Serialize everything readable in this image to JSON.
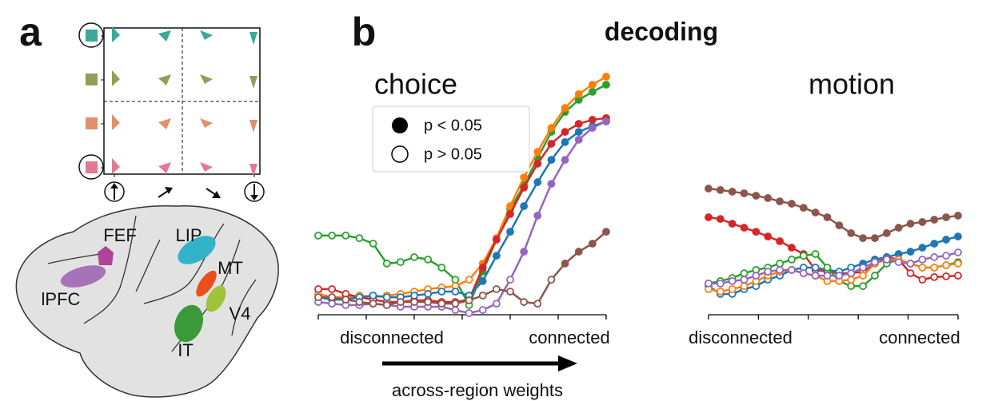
{
  "panel_a": {
    "label": "a",
    "regions": [
      "FEF",
      "LIP",
      "lPFC",
      "MT",
      "V4",
      "IT"
    ]
  },
  "panel_b": {
    "label": "b",
    "title": "decoding",
    "legend": {
      "filled": "p < 0.05",
      "open": "p > 0.05"
    },
    "xlabel": "across-region weights"
  },
  "chart_data": [
    {
      "type": "line",
      "title": "choice",
      "x_left_label": "disconnected",
      "x_right_label": "connected",
      "x": [
        0,
        1,
        2,
        3,
        4,
        5,
        6,
        7,
        8,
        9,
        10,
        11,
        12,
        13,
        14,
        15,
        16,
        17,
        18,
        19,
        20,
        21
      ],
      "xlim": [
        0,
        21
      ],
      "xticks": [
        0,
        3.5,
        7,
        10.5,
        14,
        17.5,
        21
      ],
      "ylim": [
        0,
        1
      ],
      "series": [
        {
          "color": "#2ca02c",
          "values": [
            0.327,
            0.327,
            0.327,
            0.316,
            0.293,
            0.209,
            0.215,
            0.236,
            0.226,
            0.192,
            0.141,
            0.034,
            0.175,
            0.31,
            0.438,
            0.539,
            0.653,
            0.764,
            0.848,
            0.899,
            0.933,
            0.963
          ],
          "significant": [
            false,
            false,
            false,
            false,
            false,
            false,
            false,
            false,
            false,
            false,
            false,
            false,
            true,
            true,
            true,
            true,
            true,
            true,
            true,
            true,
            true,
            true
          ]
        },
        {
          "color": "#ff7f0e",
          "values": [
            0.081,
            0.067,
            0.067,
            0.074,
            0.067,
            0.074,
            0.081,
            0.091,
            0.101,
            0.108,
            0.114,
            0.141,
            0.209,
            0.316,
            0.451,
            0.572,
            0.68,
            0.781,
            0.865,
            0.923,
            0.963,
            0.997
          ],
          "significant": [
            false,
            false,
            false,
            false,
            false,
            false,
            false,
            false,
            false,
            false,
            false,
            false,
            true,
            true,
            true,
            true,
            true,
            true,
            true,
            true,
            true,
            true
          ]
        },
        {
          "color": "#d62728",
          "values": [
            0.101,
            0.101,
            0.081,
            0.067,
            0.057,
            0.047,
            0.047,
            0.054,
            0.054,
            0.047,
            0.047,
            0.057,
            0.192,
            0.31,
            0.418,
            0.529,
            0.63,
            0.714,
            0.764,
            0.798,
            0.815,
            0.822
          ],
          "significant": [
            false,
            false,
            false,
            false,
            false,
            false,
            false,
            false,
            false,
            false,
            false,
            false,
            true,
            true,
            true,
            true,
            true,
            true,
            true,
            true,
            true,
            true
          ]
        },
        {
          "color": "#1f77b4",
          "values": [
            0.067,
            0.057,
            0.057,
            0.067,
            0.074,
            0.067,
            0.067,
            0.074,
            0.081,
            0.091,
            0.091,
            0.074,
            0.135,
            0.242,
            0.343,
            0.451,
            0.552,
            0.646,
            0.721,
            0.764,
            0.788,
            0.808
          ],
          "significant": [
            false,
            false,
            false,
            false,
            false,
            false,
            false,
            false,
            false,
            false,
            false,
            false,
            true,
            true,
            true,
            true,
            true,
            true,
            true,
            true,
            true,
            true
          ]
        },
        {
          "color": "#9467bd",
          "values": [
            0.047,
            0.04,
            0.034,
            0.034,
            0.04,
            0.034,
            0.027,
            0.027,
            0.027,
            0.027,
            0.013,
            0,
            0.013,
            0.04,
            0.141,
            0.259,
            0.411,
            0.545,
            0.646,
            0.731,
            0.781,
            0.808
          ],
          "significant": [
            false,
            false,
            false,
            false,
            false,
            false,
            false,
            false,
            false,
            false,
            false,
            false,
            false,
            false,
            false,
            true,
            true,
            true,
            true,
            true,
            true,
            true
          ]
        },
        {
          "color": "#8c564b",
          "values": [
            0.067,
            0.067,
            0.057,
            0.047,
            0.04,
            0.034,
            0.047,
            0.047,
            0.047,
            0.04,
            0.04,
            0.054,
            0.074,
            0.101,
            0.091,
            0.047,
            0.04,
            0.141,
            0.209,
            0.259,
            0.293,
            0.343
          ],
          "significant": [
            false,
            false,
            false,
            false,
            false,
            false,
            false,
            false,
            false,
            false,
            false,
            false,
            false,
            false,
            false,
            false,
            false,
            false,
            true,
            true,
            true,
            true
          ]
        }
      ]
    },
    {
      "type": "line",
      "title": "motion",
      "x_left_label": "disconnected",
      "x_right_label": "connected",
      "x": [
        0,
        1,
        2,
        3,
        4,
        5,
        6,
        7,
        8,
        9,
        10,
        11,
        12,
        13,
        14,
        15,
        16,
        17,
        18,
        19,
        20,
        21
      ],
      "xlim": [
        0,
        21
      ],
      "xticks": [
        0,
        4.2,
        8.4,
        12.6,
        16.8,
        21
      ],
      "ylim": [
        0,
        1
      ],
      "series": [
        {
          "color": "#8c564b",
          "values": [
            0.525,
            0.519,
            0.512,
            0.505,
            0.495,
            0.485,
            0.471,
            0.461,
            0.444,
            0.424,
            0.404,
            0.37,
            0.337,
            0.316,
            0.316,
            0.337,
            0.36,
            0.377,
            0.384,
            0.394,
            0.404,
            0.411
          ],
          "significant": [
            true,
            true,
            true,
            true,
            true,
            true,
            true,
            true,
            true,
            true,
            true,
            true,
            true,
            true,
            true,
            true,
            true,
            true,
            true,
            true,
            true,
            true
          ]
        },
        {
          "color": "#d62728",
          "values": [
            0.404,
            0.397,
            0.377,
            0.36,
            0.343,
            0.323,
            0.303,
            0.276,
            0.249,
            0.182,
            0.175,
            0.168,
            0.168,
            0.175,
            0.209,
            0.236,
            0.226,
            0.168,
            0.141,
            0.152,
            0.155,
            0.158
          ],
          "significant": [
            true,
            true,
            true,
            true,
            true,
            true,
            true,
            true,
            true,
            false,
            false,
            false,
            false,
            false,
            false,
            false,
            false,
            false,
            false,
            false,
            false,
            false
          ]
        },
        {
          "color": "#1f77b4",
          "values": [
            0.114,
            0.081,
            0.081,
            0.101,
            0.114,
            0.141,
            0.158,
            0.182,
            0.192,
            0.192,
            0.182,
            0.175,
            0.192,
            0.209,
            0.226,
            0.236,
            0.249,
            0.259,
            0.276,
            0.293,
            0.31,
            0.323
          ],
          "significant": [
            false,
            false,
            false,
            false,
            false,
            false,
            false,
            false,
            false,
            false,
            false,
            false,
            false,
            true,
            true,
            true,
            true,
            true,
            true,
            true,
            true,
            true
          ]
        },
        {
          "color": "#2ca02c",
          "values": [
            0.125,
            0.135,
            0.148,
            0.168,
            0.182,
            0.192,
            0.209,
            0.226,
            0.242,
            0.249,
            0.192,
            0.135,
            0.114,
            0.114,
            0.158,
            0.209,
            0.226,
            0.209,
            0.192,
            0.192,
            0.202,
            0.215
          ],
          "significant": [
            false,
            false,
            false,
            false,
            false,
            false,
            false,
            false,
            false,
            false,
            false,
            false,
            false,
            false,
            false,
            false,
            false,
            false,
            false,
            false,
            false,
            false
          ]
        },
        {
          "color": "#ff7f0e",
          "values": [
            0.101,
            0.091,
            0.101,
            0.114,
            0.135,
            0.158,
            0.175,
            0.182,
            0.168,
            0.158,
            0.135,
            0.135,
            0.141,
            0.158,
            0.209,
            0.226,
            0.226,
            0.209,
            0.192,
            0.192,
            0.202,
            0.209
          ],
          "significant": [
            false,
            false,
            false,
            false,
            false,
            false,
            false,
            false,
            false,
            false,
            false,
            false,
            false,
            false,
            false,
            false,
            false,
            false,
            false,
            false,
            false,
            false
          ]
        },
        {
          "color": "#9467bd",
          "values": [
            0.125,
            0.125,
            0.135,
            0.141,
            0.158,
            0.175,
            0.182,
            0.182,
            0.168,
            0.158,
            0.158,
            0.158,
            0.168,
            0.192,
            0.215,
            0.226,
            0.215,
            0.209,
            0.226,
            0.236,
            0.242,
            0.256
          ],
          "significant": [
            false,
            false,
            false,
            false,
            false,
            false,
            false,
            false,
            false,
            false,
            false,
            false,
            false,
            false,
            false,
            false,
            false,
            false,
            false,
            false,
            false,
            false
          ]
        }
      ]
    }
  ]
}
